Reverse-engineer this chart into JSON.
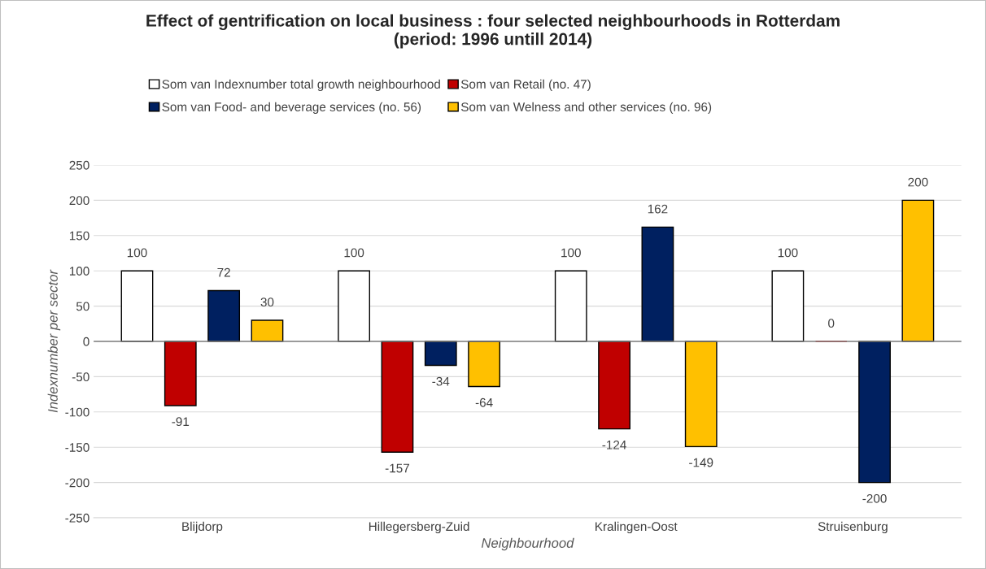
{
  "chart_data": {
    "type": "bar",
    "title": "Effect of gentrification on local business : four selected neighbourhoods in Rotterdam\n(period: 1996 untill 2014)",
    "xlabel": "Neighbourhood",
    "ylabel": "Indexnumber per sector",
    "categories": [
      "Blijdorp",
      "Hillegersberg-Zuid",
      "Kralingen-Oost",
      "Struisenburg"
    ],
    "series": [
      {
        "name": "Som van Indexnumber total growth neighbourhood",
        "color": "#ffffff",
        "values": [
          100,
          100,
          100,
          100
        ]
      },
      {
        "name": "Som van Retail (no. 47)",
        "color": "#c00000",
        "values": [
          -91,
          -157,
          -124,
          0
        ]
      },
      {
        "name": "Som van Food- and beverage services (no. 56)",
        "color": "#002060",
        "values": [
          72,
          -34,
          162,
          -200
        ]
      },
      {
        "name": "Som van Welness and other services (no. 96)",
        "color": "#ffc000",
        "values": [
          30,
          -64,
          -149,
          200
        ]
      }
    ],
    "ylim": [
      -250,
      250
    ],
    "yticks": [
      -250,
      -200,
      -150,
      -100,
      -50,
      0,
      50,
      100,
      150,
      200,
      250
    ],
    "grid": "y",
    "legend": "top",
    "data_labels": true
  }
}
